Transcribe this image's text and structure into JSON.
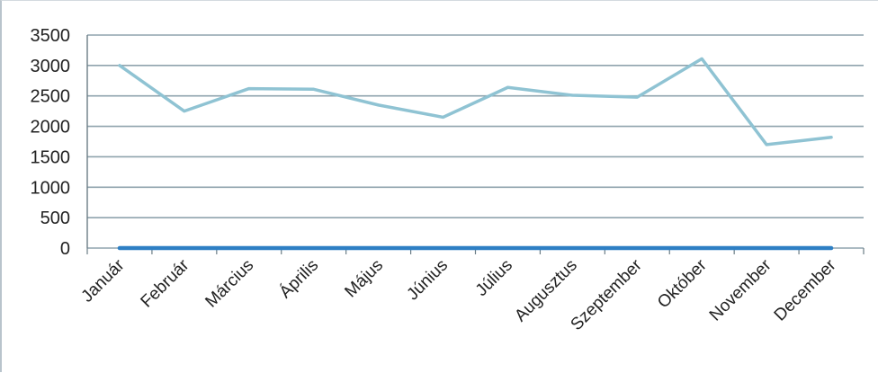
{
  "chart_data": {
    "type": "line",
    "categories": [
      "Január",
      "Február",
      "Március",
      "Április",
      "Május",
      "Június",
      "Július",
      "Augusztus",
      "Szeptember",
      "Október",
      "November",
      "December"
    ],
    "series": [
      {
        "values": [
          3000,
          2250,
          2620,
          2610,
          2350,
          2150,
          2640,
          2510,
          2480,
          3110,
          1700,
          1820
        ],
        "color": "#8fc3d3"
      },
      {
        "values": [
          0,
          0,
          0,
          0,
          0,
          0,
          0,
          0,
          0,
          0,
          0,
          0
        ],
        "color": "#2e7fc4"
      }
    ],
    "yticks": [
      "0",
      "500",
      "1000",
      "1500",
      "2000",
      "2500",
      "3000",
      "3500"
    ],
    "ylim": [
      0,
      3500
    ],
    "grid": true,
    "legend": "none",
    "colors": {
      "grid": "#8fa3ad",
      "axis": "#6b7d86"
    }
  }
}
